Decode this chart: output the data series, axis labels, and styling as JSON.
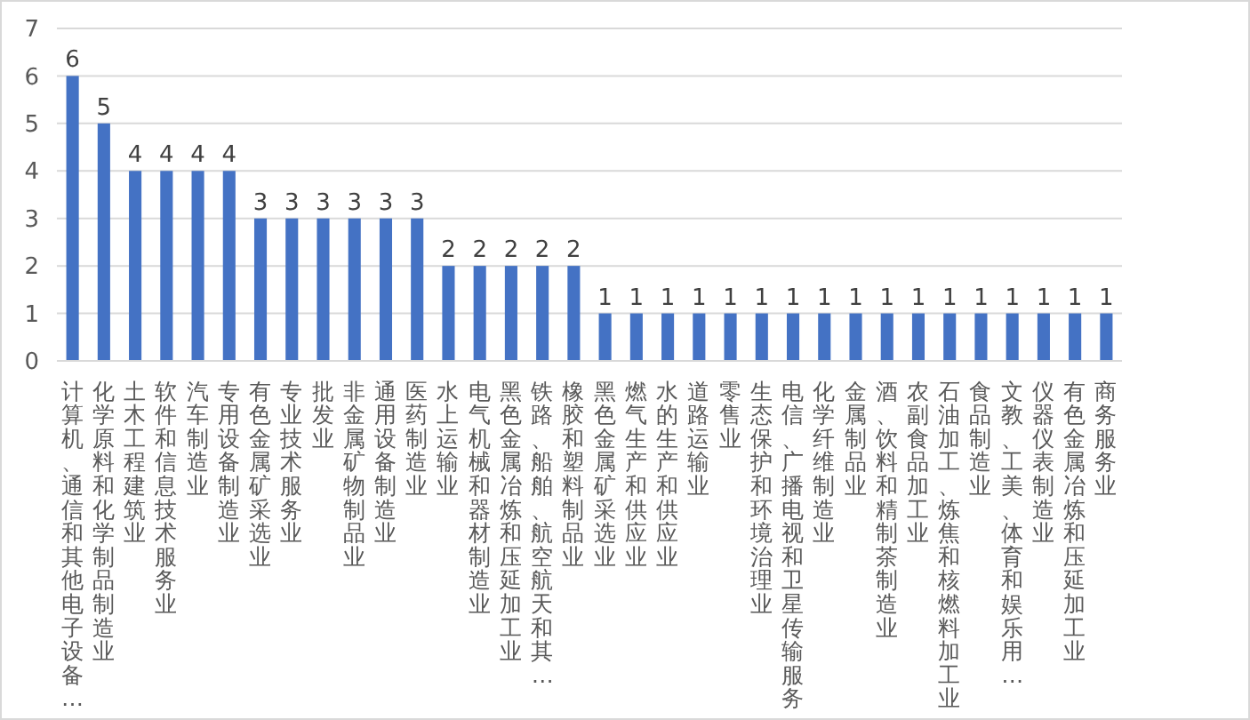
{
  "chart_data": {
    "type": "bar",
    "categories": [
      "计算机、通信和其他电子设备…",
      "化学原料和化学制品制造业",
      "土木工程建筑业",
      "软件和信息技术服务业",
      "汽车制造业",
      "专用设备制造业",
      "有色金属矿采选业",
      "专业技术服务业",
      "批发业",
      "非金属矿物制品业",
      "通用设备制造业",
      "医药制造业",
      "水上运输业",
      "电气机械和器材制造业",
      "黑色金属冶炼和压延加工业",
      "铁路、船舶、航空航天和其…",
      "橡胶和塑料制品业",
      "黑色金属矿采选业",
      "燃气生产和供应业",
      "水的生产和供应业",
      "道路运输业",
      "零售业",
      "生态保护和环境治理业",
      "电信、广播电视和卫星传输服务",
      "化学纤维制造业",
      "金属制品业",
      "酒、饮料和精制茶制造业",
      "农副食品加工业",
      "石油加工、炼焦和核燃料加工业",
      "食品制造业",
      "文教、工美、体育和娱乐用…",
      "仪器仪表制造业",
      "有色金属冶炼和压延加工业",
      "商务服务业"
    ],
    "values": [
      6,
      5,
      4,
      4,
      4,
      4,
      3,
      3,
      3,
      3,
      3,
      3,
      2,
      2,
      2,
      2,
      2,
      1,
      1,
      1,
      1,
      1,
      1,
      1,
      1,
      1,
      1,
      1,
      1,
      1,
      1,
      1,
      1,
      1
    ],
    "color": "#4472c4",
    "ylim": [
      0,
      7
    ],
    "yticks": [
      0,
      1,
      2,
      3,
      4,
      5,
      6,
      7
    ],
    "grid": "y",
    "data_labels": true
  }
}
